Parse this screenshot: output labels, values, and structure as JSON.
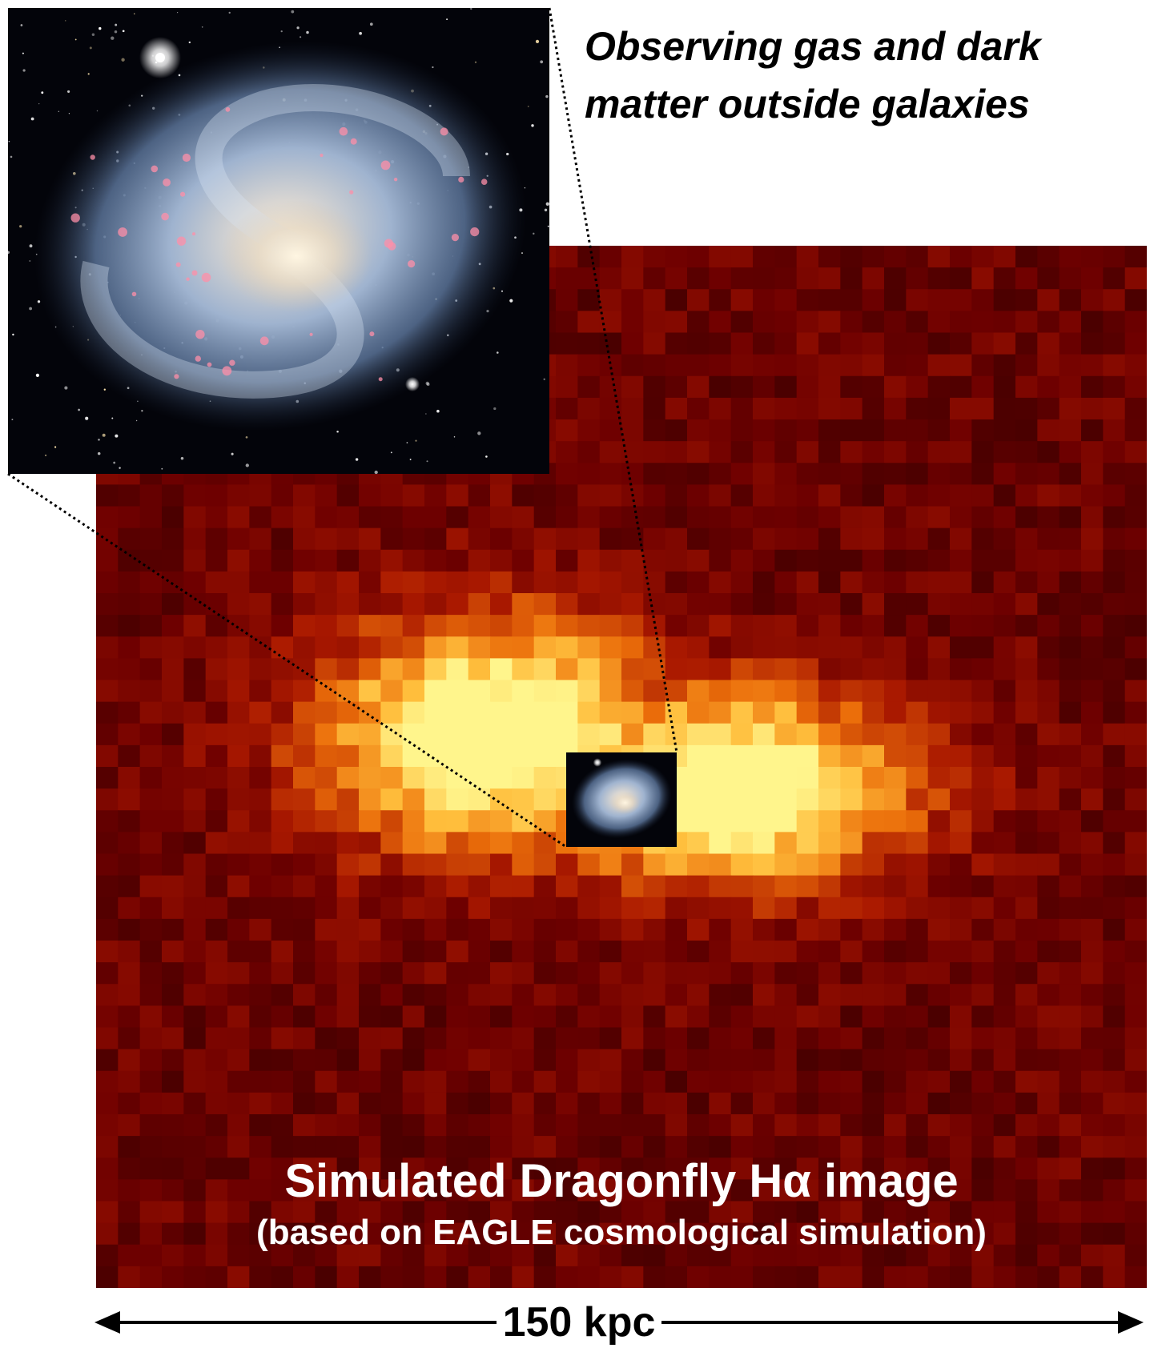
{
  "headline": {
    "line1": "Observing gas and dark",
    "line2": "matter outside galaxies"
  },
  "map": {
    "title": "Simulated Dragonfly Hα image",
    "subtitle": "(based on EAGLE cosmological simulation)"
  },
  "scale": {
    "label": "150 kpc"
  },
  "colors": {
    "background_red": "#6a0000",
    "glow_orange": "#ff8a1a",
    "glow_yellow": "#ffec7a",
    "space_black": "#03040a",
    "galaxy_blue": "#a9bfdc"
  }
}
